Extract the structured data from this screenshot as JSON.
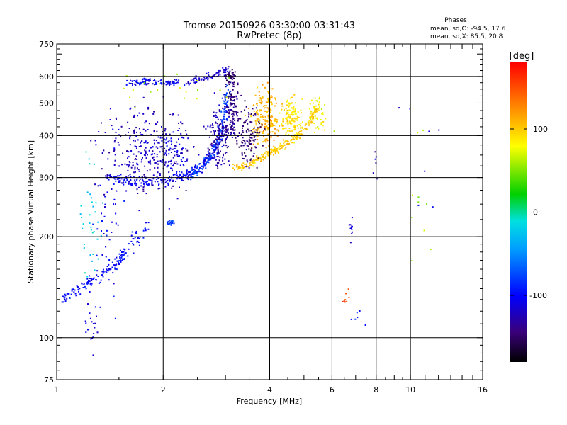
{
  "title_line1": "Tromsø 20150926 03:30:00-03:31:43",
  "title_line2": "RwPretec (8p)",
  "stats": {
    "heading": "Phases",
    "line_o": "mean, sd,O: -94.5, 17.6",
    "line_x": "mean, sd,X:  85.5, 20.8"
  },
  "colorbar": {
    "label": "[deg]",
    "ticks": [
      "100",
      "0",
      "-100"
    ],
    "tick_values": [
      100,
      0,
      -100
    ],
    "range": [
      -180,
      180
    ]
  },
  "chart_data": {
    "type": "scatter",
    "xlabel": "Frequency [MHz]",
    "ylabel": "Stationary phase Virtual Height [km]",
    "xscale": "log",
    "yscale": "log",
    "xlim": [
      1,
      16
    ],
    "ylim": [
      75,
      750
    ],
    "xticks": [
      1,
      2,
      4,
      6,
      8,
      10,
      16
    ],
    "xtick_labels": [
      "1",
      "2",
      "4",
      "6",
      "8",
      "10",
      "16"
    ],
    "yticks": [
      75,
      100,
      200,
      300,
      400,
      500,
      600,
      750
    ],
    "ytick_labels": [
      "75",
      "100",
      "200",
      "300",
      "400",
      "500",
      "600",
      "750"
    ],
    "grid_x": [
      2,
      4,
      6,
      8,
      10
    ],
    "grid_y": [
      100,
      200,
      300,
      400,
      500,
      600
    ],
    "traces": [
      {
        "kind": "curve",
        "points": [
          [
            1.02,
            130
          ],
          [
            1.1,
            135
          ],
          [
            1.2,
            145
          ],
          [
            1.3,
            150
          ],
          [
            1.4,
            160
          ],
          [
            1.5,
            170
          ],
          [
            1.6,
            185
          ],
          [
            1.7,
            200
          ],
          [
            1.8,
            215
          ]
        ],
        "phase": -100,
        "n": 160,
        "spread": 0.03
      },
      {
        "kind": "curve",
        "points": [
          [
            1.4,
            300
          ],
          [
            1.6,
            290
          ],
          [
            1.8,
            290
          ],
          [
            2.0,
            295
          ],
          [
            2.2,
            300
          ],
          [
            2.4,
            310
          ],
          [
            2.6,
            330
          ],
          [
            2.8,
            360
          ],
          [
            2.9,
            400
          ]
        ],
        "phase": -105,
        "n": 240,
        "spread": 0.025
      },
      {
        "kind": "cloud",
        "center": [
          1.75,
          360
        ],
        "size": [
          0.28,
          0.3
        ],
        "phase": -120,
        "n": 280
      },
      {
        "kind": "cloud",
        "center": [
          2.1,
          360
        ],
        "size": [
          0.15,
          0.18
        ],
        "phase": -110,
        "n": 90
      },
      {
        "kind": "curve",
        "points": [
          [
            1.6,
            580
          ],
          [
            1.8,
            580
          ],
          [
            2.0,
            575
          ],
          [
            2.2,
            575
          ]
        ],
        "phase": -105,
        "n": 90,
        "spread": 0.02
      },
      {
        "kind": "curve",
        "points": [
          [
            2.3,
            570
          ],
          [
            2.6,
            590
          ],
          [
            2.8,
            610
          ],
          [
            3.1,
            630
          ]
        ],
        "phase": -115,
        "n": 70,
        "spread": 0.02
      },
      {
        "kind": "curve",
        "points": [
          [
            2.4,
            300
          ],
          [
            2.7,
            340
          ],
          [
            2.9,
            400
          ],
          [
            3.0,
            480
          ],
          [
            3.05,
            560
          ]
        ],
        "phase": -80,
        "n": 160,
        "spread": 0.025
      },
      {
        "kind": "cloud",
        "center": [
          2.9,
          400
        ],
        "size": [
          0.08,
          0.22
        ],
        "phase": -130,
        "n": 150
      },
      {
        "kind": "cloud",
        "center": [
          3.15,
          480
        ],
        "size": [
          0.05,
          0.22
        ],
        "phase": -140,
        "n": 110
      },
      {
        "kind": "curve",
        "points": [
          [
            3.2,
            320
          ],
          [
            3.5,
            330
          ],
          [
            3.8,
            345
          ],
          [
            4.1,
            360
          ],
          [
            4.5,
            380
          ],
          [
            4.8,
            400
          ],
          [
            5.2,
            440
          ],
          [
            5.4,
            480
          ]
        ],
        "phase": 100,
        "n": 220,
        "spread": 0.02
      },
      {
        "kind": "cloud",
        "center": [
          3.9,
          450
        ],
        "size": [
          0.1,
          0.2
        ],
        "phase": 110,
        "n": 200
      },
      {
        "kind": "cloud",
        "center": [
          4.6,
          450
        ],
        "size": [
          0.07,
          0.12
        ],
        "phase": 90,
        "n": 120
      },
      {
        "kind": "cloud",
        "center": [
          3.5,
          400
        ],
        "size": [
          0.08,
          0.2
        ],
        "phase": -145,
        "n": 110
      },
      {
        "kind": "cloud",
        "center": [
          3.1,
          600
        ],
        "size": [
          0.04,
          0.05
        ],
        "phase": -150,
        "n": 40
      },
      {
        "kind": "cloud",
        "center": [
          1.25,
          230
        ],
        "size": [
          0.08,
          0.45
        ],
        "phase": -20,
        "n": 35
      },
      {
        "kind": "cloud",
        "center": [
          1.4,
          200
        ],
        "size": [
          0.1,
          0.45
        ],
        "phase": -100,
        "n": 40
      },
      {
        "kind": "cloud",
        "center": [
          1.25,
          110
        ],
        "size": [
          0.04,
          0.18
        ],
        "phase": -110,
        "n": 18
      },
      {
        "kind": "cloud",
        "center": [
          5.5,
          470
        ],
        "size": [
          0.09,
          0.15
        ],
        "phase": 80,
        "n": 45
      },
      {
        "kind": "cloud",
        "center": [
          6.8,
          210
        ],
        "size": [
          0.04,
          0.08
        ],
        "phase": -110,
        "n": 12
      },
      {
        "kind": "cloud",
        "center": [
          6.6,
          130
        ],
        "size": [
          0.04,
          0.08
        ],
        "phase": 150,
        "n": 8
      },
      {
        "kind": "cloud",
        "center": [
          7.1,
          110
        ],
        "size": [
          0.05,
          0.12
        ],
        "phase": -100,
        "n": 6
      },
      {
        "kind": "cloud",
        "center": [
          8.0,
          330
        ],
        "size": [
          0.02,
          0.1
        ],
        "phase": -120,
        "n": 6
      },
      {
        "kind": "cloud",
        "center": [
          11.2,
          260
        ],
        "size": [
          0.1,
          0.45
        ],
        "phase": 60,
        "n": 10
      },
      {
        "kind": "cloud",
        "center": [
          10.6,
          330
        ],
        "size": [
          0.12,
          0.45
        ],
        "phase": -105,
        "n": 8
      },
      {
        "kind": "cloud",
        "center": [
          2.1,
          220
        ],
        "size": [
          0.03,
          0.02
        ],
        "phase": -75,
        "n": 18
      },
      {
        "kind": "cloud",
        "center": [
          2.3,
          560
        ],
        "size": [
          0.4,
          0.12
        ],
        "phase": 60,
        "n": 20
      }
    ]
  }
}
